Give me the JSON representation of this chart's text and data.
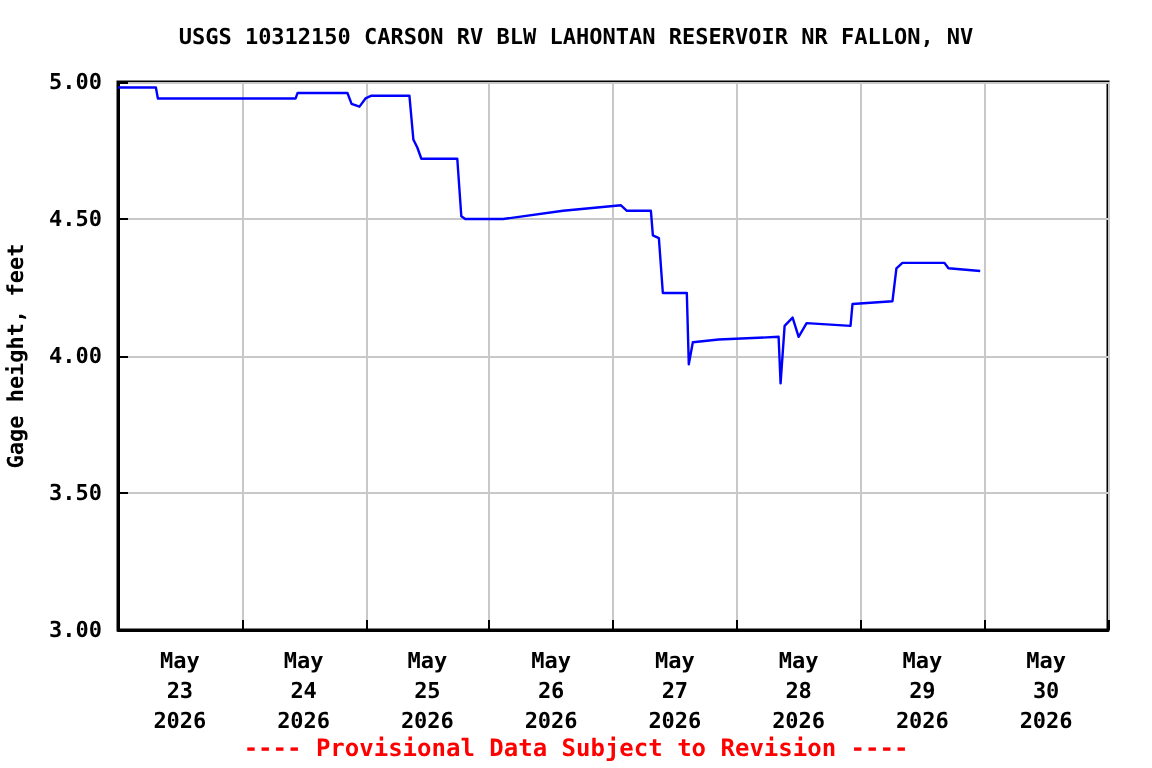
{
  "chart_data": {
    "type": "line",
    "title": "USGS 10312150 CARSON RV BLW LAHONTAN RESERVOIR NR FALLON, NV",
    "ylabel": "Gage height, feet",
    "annotations": [
      "---- Provisional Data Subject to Revision ----"
    ],
    "x": [
      "2026-05-23T00:00",
      "2026-05-23T07:21",
      "2026-05-23T07:44",
      "2026-05-24T10:27",
      "2026-05-24T10:50",
      "2026-05-24T20:30",
      "2026-05-24T21:18",
      "2026-05-24T22:50",
      "2026-05-25T00:00",
      "2026-05-25T01:10",
      "2026-05-25T08:31",
      "2026-05-25T09:17",
      "2026-05-25T10:04",
      "2026-05-25T10:50",
      "2026-05-25T17:48",
      "2026-05-25T18:35",
      "2026-05-25T19:21",
      "2026-05-26T02:43",
      "2026-05-26T14:19",
      "2026-05-27T01:33",
      "2026-05-27T02:42",
      "2026-05-27T07:21",
      "2026-05-27T07:44",
      "2026-05-27T08:54",
      "2026-05-27T09:40",
      "2026-05-27T14:19",
      "2026-05-27T14:42",
      "2026-05-27T15:29",
      "2026-05-27T20:30",
      "2026-05-28T08:07",
      "2026-05-28T08:30",
      "2026-05-28T09:17",
      "2026-05-28T10:50",
      "2026-05-28T12:00",
      "2026-05-28T13:33",
      "2026-05-28T22:04",
      "2026-05-28T22:27",
      "2026-05-29T06:12",
      "2026-05-29T06:58",
      "2026-05-29T08:08",
      "2026-05-29T16:17",
      "2026-05-29T17:03",
      "2026-05-29T23:13"
    ],
    "series": [
      {
        "color": "#0000ff",
        "values": [
          4.98,
          4.98,
          4.94,
          4.94,
          4.96,
          4.96,
          4.92,
          4.91,
          4.94,
          4.95,
          4.95,
          4.79,
          4.76,
          4.72,
          4.72,
          4.51,
          4.5,
          4.5,
          4.53,
          4.55,
          4.53,
          4.53,
          4.44,
          4.43,
          4.23,
          4.23,
          3.97,
          4.05,
          4.06,
          4.07,
          3.9,
          4.11,
          4.14,
          4.07,
          4.12,
          4.11,
          4.19,
          4.2,
          4.32,
          4.34,
          4.34,
          4.32,
          4.31
        ]
      }
    ],
    "xlim": [
      "2026-05-23T00:00",
      "2026-05-31T00:00"
    ],
    "xticks": [
      {
        "value": "2026-05-23T00:00",
        "label": null
      },
      {
        "value": "2026-05-23T12:00",
        "label": "May\n23\n2026"
      },
      {
        "value": "2026-05-24T00:00",
        "label": null
      },
      {
        "value": "2026-05-24T12:00",
        "label": "May\n24\n2026"
      },
      {
        "value": "2026-05-25T00:00",
        "label": null
      },
      {
        "value": "2026-05-25T12:00",
        "label": "May\n25\n2026"
      },
      {
        "value": "2026-05-26T00:00",
        "label": null
      },
      {
        "value": "2026-05-26T12:00",
        "label": "May\n26\n2026"
      },
      {
        "value": "2026-05-27T00:00",
        "label": null
      },
      {
        "value": "2026-05-27T12:00",
        "label": "May\n27\n2026"
      },
      {
        "value": "2026-05-28T00:00",
        "label": null
      },
      {
        "value": "2026-05-28T12:00",
        "label": "May\n28\n2026"
      },
      {
        "value": "2026-05-29T00:00",
        "label": null
      },
      {
        "value": "2026-05-29T12:00",
        "label": "May\n29\n2026"
      },
      {
        "value": "2026-05-30T00:00",
        "label": null
      },
      {
        "value": "2026-05-30T12:00",
        "label": "May\n30\n2026"
      },
      {
        "value": "2026-05-31T00:00",
        "label": null
      }
    ],
    "ylim": [
      3,
      5
    ],
    "yticks": [
      {
        "value": 3,
        "label": "3.00"
      },
      {
        "value": 3.5,
        "label": "3.50"
      },
      {
        "value": 4,
        "label": "4.00"
      },
      {
        "value": 4.5,
        "label": "4.50"
      },
      {
        "value": 5,
        "label": "5.00"
      }
    ],
    "grid": true,
    "marker": "none",
    "line_style": "solid"
  }
}
